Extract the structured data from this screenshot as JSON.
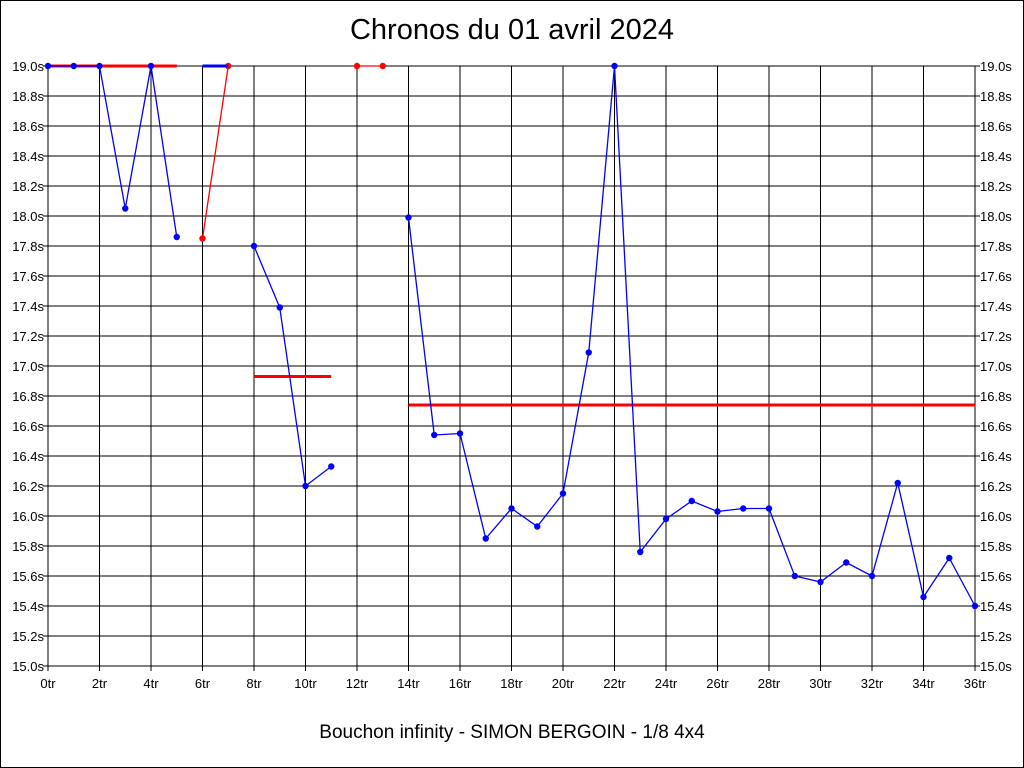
{
  "title": "Chronos du 01 avril 2024",
  "caption": "Bouchon infinity - SIMON BERGOIN - 1/8 4x4",
  "colors": {
    "main_series": "#0000ff",
    "highlight": "#ff0000",
    "grid": "#000000",
    "background": "#ffffff"
  },
  "chart_data": {
    "type": "line",
    "title": "Chronos du 01 avril 2024",
    "xlabel": "",
    "ylabel": "",
    "xlim": [
      0,
      36
    ],
    "ylim": [
      15.0,
      19.0
    ],
    "grid": true,
    "x_ticks": [
      "0tr",
      "2tr",
      "4tr",
      "6tr",
      "8tr",
      "10tr",
      "12tr",
      "14tr",
      "16tr",
      "18tr",
      "20tr",
      "22tr",
      "24tr",
      "26tr",
      "28tr",
      "30tr",
      "32tr",
      "34tr",
      "36tr"
    ],
    "y_ticks": [
      "15.0s",
      "15.2s",
      "15.4s",
      "15.6s",
      "15.8s",
      "16.0s",
      "16.2s",
      "16.4s",
      "16.6s",
      "16.8s",
      "17.0s",
      "17.2s",
      "17.4s",
      "17.6s",
      "17.8s",
      "18.0s",
      "18.2s",
      "18.4s",
      "18.6s",
      "18.8s",
      "19.0s"
    ],
    "segments": [
      {
        "color": "#0000ff",
        "points": [
          [
            0,
            19.0
          ],
          [
            1,
            19.0
          ],
          [
            2,
            19.0
          ],
          [
            3,
            18.05
          ],
          [
            4,
            19.0
          ],
          [
            5,
            17.86
          ]
        ]
      },
      {
        "color": "#ff0000",
        "points": [
          [
            6,
            17.85
          ],
          [
            7,
            19.0
          ]
        ]
      },
      {
        "color": "#0000ff",
        "points": [
          [
            6,
            19.0
          ],
          [
            7,
            19.0
          ]
        ],
        "markers": false
      },
      {
        "color": "#0000ff",
        "points": [
          [
            8,
            17.8
          ],
          [
            9,
            17.39
          ],
          [
            10,
            16.2
          ],
          [
            11,
            16.33
          ]
        ]
      },
      {
        "color": "#ff0000",
        "points": [
          [
            12,
            19.0
          ],
          [
            13,
            19.0
          ]
        ]
      },
      {
        "color": "#0000ff",
        "points": [
          [
            14,
            17.99
          ],
          [
            15,
            16.54
          ],
          [
            16,
            16.55
          ],
          [
            17,
            15.85
          ],
          [
            18,
            16.05
          ],
          [
            19,
            15.93
          ],
          [
            20,
            16.15
          ],
          [
            21,
            17.09
          ],
          [
            22,
            19.0
          ],
          [
            23,
            15.76
          ],
          [
            24,
            15.98
          ],
          [
            25,
            16.1
          ],
          [
            26,
            16.03
          ],
          [
            27,
            16.05
          ],
          [
            28,
            16.05
          ],
          [
            29,
            15.6
          ],
          [
            30,
            15.56
          ],
          [
            31,
            15.69
          ],
          [
            32,
            15.6
          ],
          [
            33,
            16.22
          ],
          [
            34,
            15.46
          ],
          [
            35,
            15.72
          ],
          [
            36,
            15.4
          ]
        ]
      }
    ],
    "reference_lines": [
      {
        "color": "#ff0000",
        "x": [
          0,
          5
        ],
        "y": 19.0
      },
      {
        "color": "#ff0000",
        "x": [
          8,
          11
        ],
        "y": 16.93
      },
      {
        "color": "#ff0000",
        "x": [
          14,
          36
        ],
        "y": 16.74
      }
    ]
  }
}
